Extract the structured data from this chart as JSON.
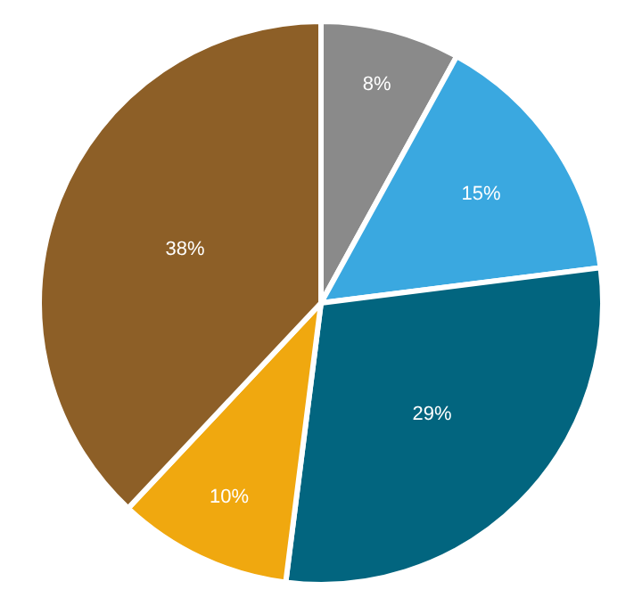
{
  "chart_data": {
    "type": "pie",
    "categories": [
      null,
      null,
      null,
      null,
      null
    ],
    "values": [
      8,
      15,
      29,
      10,
      38
    ],
    "colors": [
      "#8a8a8a",
      "#3aa8e0",
      "#02657f",
      "#f0a80f",
      "#8d5f27"
    ],
    "value_labels": [
      "8%",
      "15%",
      "29%",
      "10%",
      "38%"
    ],
    "legend": false
  }
}
